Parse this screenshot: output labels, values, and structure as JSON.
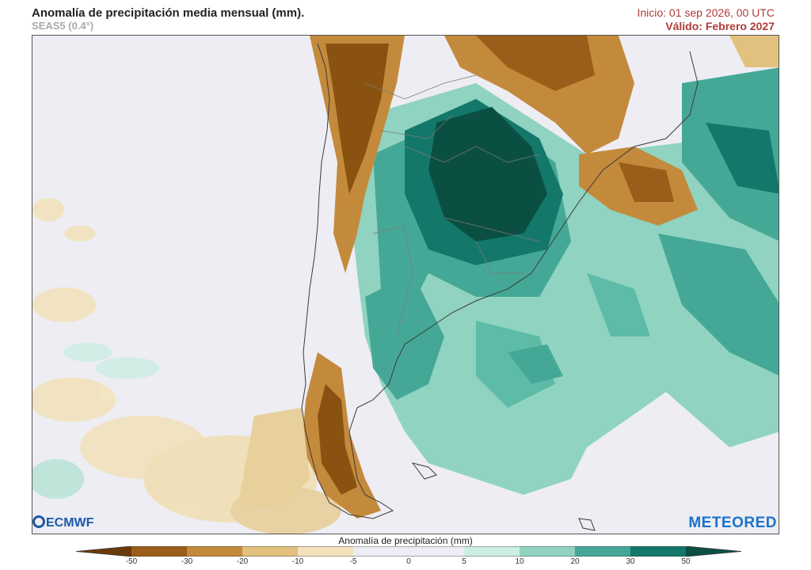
{
  "header": {
    "title": "Anomalía de precipitación media mensual (mm).",
    "subtitle": "SEAS5 (0.4°)",
    "init": "Inicio: 01 sep 2026, 00 UTC",
    "valid": "Válido: Febrero 2027"
  },
  "logos": {
    "left": "ECMWF",
    "right": "METEORED"
  },
  "legend": {
    "title": "Anomalía de precipitación (mm)",
    "ticks": [
      "-50",
      "-30",
      "-20",
      "-10",
      "-5",
      "0",
      "5",
      "10",
      "20",
      "30",
      "50"
    ],
    "colors": [
      "#6b3a0a",
      "#9a5d1a",
      "#c48a3c",
      "#e2c07e",
      "#f2e3bd",
      "#ededf3",
      "#ededf3",
      "#cdeee3",
      "#8fd3c0",
      "#45a896",
      "#13786a",
      "#0b4f43"
    ]
  },
  "colors": {
    "dry_strong": "#8a5210",
    "dry_mid": "#c48a3c",
    "dry_light": "#e8d09c",
    "wet_light": "#b6e3d6",
    "wet_mid": "#5dbba7",
    "wet_strong": "#17806f",
    "wet_max": "#0b4f43",
    "land_outline": "#3a3a3a"
  }
}
